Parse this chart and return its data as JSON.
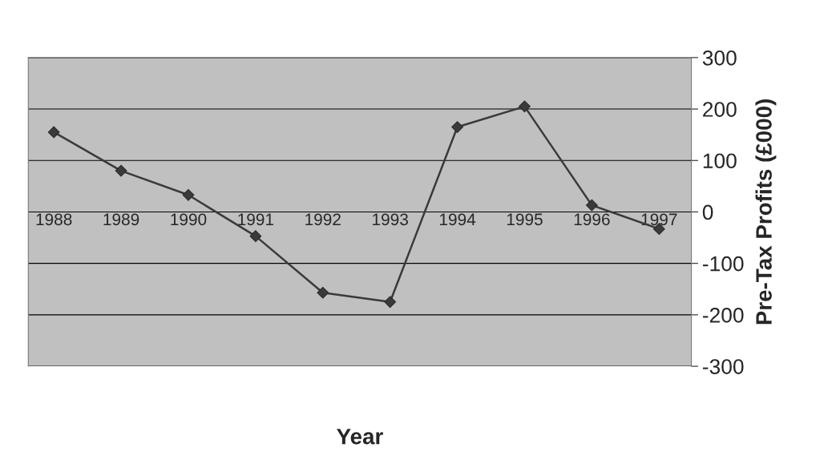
{
  "chart_data": {
    "type": "line",
    "xlabel": "Year",
    "ylabel": "Pre-Tax Profits (£000)",
    "categories": [
      "1988",
      "1989",
      "1990",
      "1991",
      "1992",
      "1993",
      "1994",
      "1995",
      "1996",
      "1997"
    ],
    "series": [
      {
        "color": "#3a3a3a",
        "values": [
          155,
          80,
          33,
          -47,
          -157,
          -175,
          165,
          205,
          13,
          -33
        ]
      }
    ],
    "ylim": [
      -300,
      300
    ],
    "yticks": [
      -300,
      -200,
      -100,
      0,
      100,
      200,
      300
    ],
    "grid": "y",
    "marker": "diamond",
    "line_style": "solid",
    "legend": false
  }
}
